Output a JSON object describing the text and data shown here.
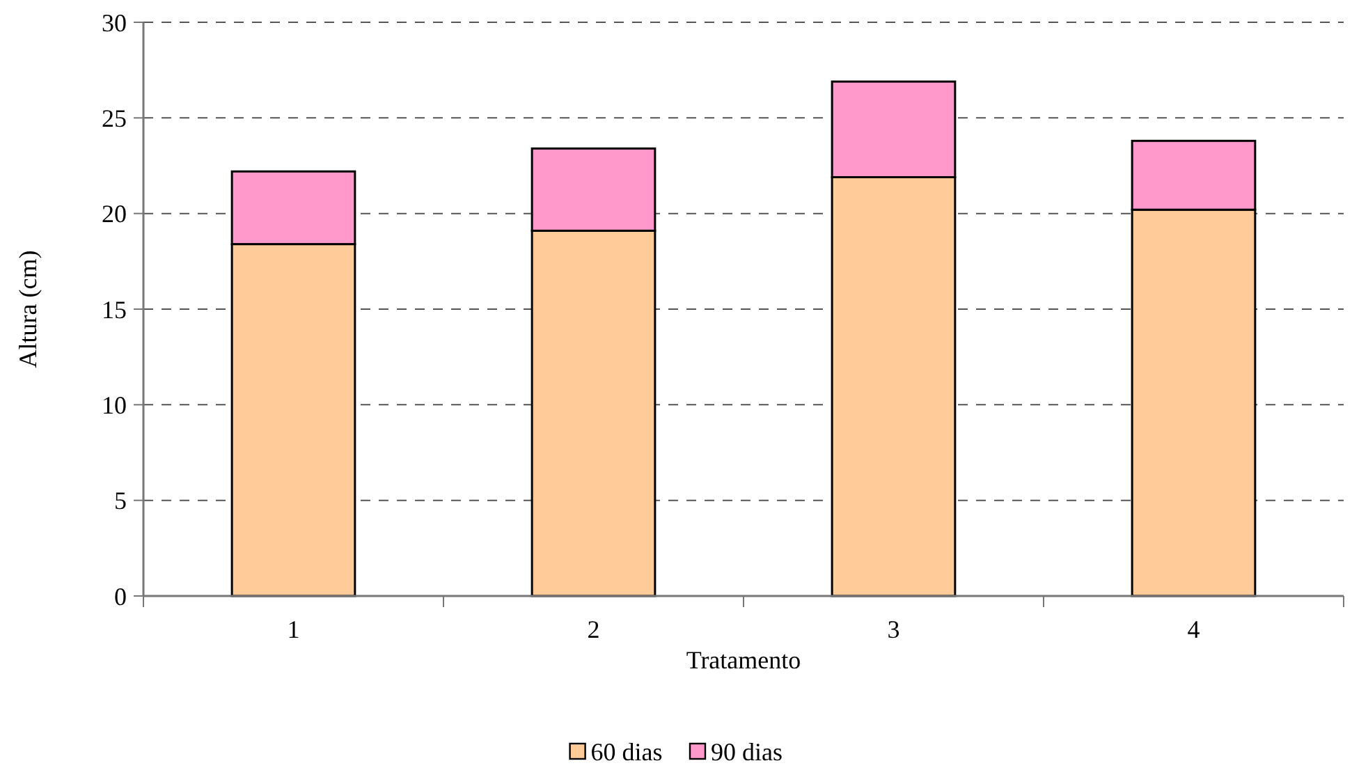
{
  "chart_data": {
    "type": "bar",
    "xlabel": "Tratamento",
    "ylabel": "Altura (cm)",
    "categories": [
      "1",
      "2",
      "3",
      "4"
    ],
    "series": [
      {
        "name": "60 dias",
        "color": "#ffcc99",
        "values": [
          18.4,
          19.1,
          21.9,
          20.2
        ]
      },
      {
        "name": "90 dias",
        "color": "#ff99cc",
        "values": [
          3.8,
          4.3,
          5.0,
          3.6
        ]
      }
    ],
    "stacked": true,
    "ylim": [
      0,
      30
    ],
    "yticks": [
      0,
      5,
      10,
      15,
      20,
      25,
      30
    ],
    "grid": "y",
    "legend": "bottom"
  }
}
